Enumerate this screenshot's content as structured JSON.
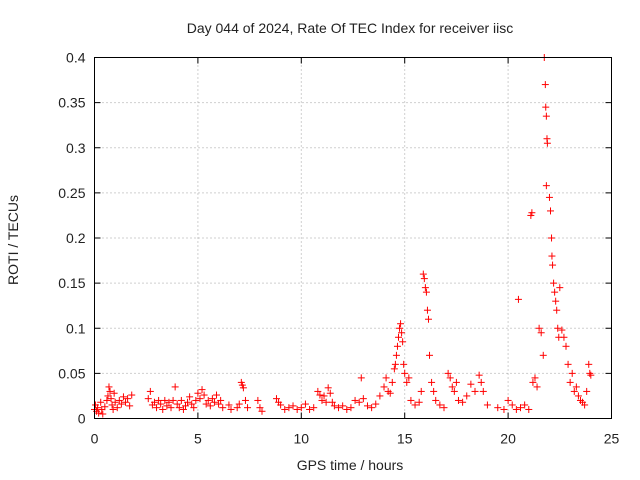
{
  "chart_data": {
    "type": "scatter",
    "title": "Day 044 of 2024, Rate Of TEC Index for receiver iisc",
    "xlabel": "GPS time / hours",
    "ylabel": "ROTI / TECUs",
    "xlim": [
      0,
      25
    ],
    "ylim": [
      0,
      0.4
    ],
    "xticks": [
      0,
      5,
      10,
      15,
      20,
      25
    ],
    "xtick_labels": [
      "0",
      "5",
      "10",
      "15",
      "20",
      "25"
    ],
    "yticks": [
      0,
      0.05,
      0.1,
      0.15,
      0.2,
      0.25,
      0.3,
      0.35,
      0.4
    ],
    "ytick_labels": [
      "0",
      "0.05",
      "0.1",
      "0.15",
      "0.2",
      "0.25",
      "0.3",
      "0.35",
      "0.4"
    ],
    "grid": true,
    "marker": "+",
    "series": [
      {
        "name": "ROTI",
        "color": "#ff0000",
        "points": [
          [
            0.0,
            0.01
          ],
          [
            0.05,
            0.015
          ],
          [
            0.1,
            0.008
          ],
          [
            0.15,
            0.012
          ],
          [
            0.2,
            0.006
          ],
          [
            0.3,
            0.018
          ],
          [
            0.35,
            0.01
          ],
          [
            0.4,
            0.005
          ],
          [
            0.5,
            0.013
          ],
          [
            0.6,
            0.02
          ],
          [
            0.65,
            0.025
          ],
          [
            0.7,
            0.035
          ],
          [
            0.75,
            0.03
          ],
          [
            0.8,
            0.022
          ],
          [
            0.85,
            0.015
          ],
          [
            0.9,
            0.01
          ],
          [
            0.95,
            0.028
          ],
          [
            1.0,
            0.018
          ],
          [
            1.1,
            0.012
          ],
          [
            1.2,
            0.02
          ],
          [
            1.3,
            0.016
          ],
          [
            1.4,
            0.024
          ],
          [
            1.5,
            0.018
          ],
          [
            1.6,
            0.022
          ],
          [
            1.7,
            0.014
          ],
          [
            1.8,
            0.026
          ],
          [
            2.6,
            0.022
          ],
          [
            2.7,
            0.03
          ],
          [
            2.8,
            0.015
          ],
          [
            2.9,
            0.018
          ],
          [
            3.0,
            0.012
          ],
          [
            3.1,
            0.02
          ],
          [
            3.2,
            0.016
          ],
          [
            3.3,
            0.01
          ],
          [
            3.4,
            0.02
          ],
          [
            3.5,
            0.014
          ],
          [
            3.6,
            0.018
          ],
          [
            3.7,
            0.012
          ],
          [
            3.8,
            0.02
          ],
          [
            3.9,
            0.035
          ],
          [
            4.0,
            0.016
          ],
          [
            4.1,
            0.012
          ],
          [
            4.2,
            0.02
          ],
          [
            4.3,
            0.01
          ],
          [
            4.4,
            0.014
          ],
          [
            4.5,
            0.018
          ],
          [
            4.6,
            0.024
          ],
          [
            4.7,
            0.016
          ],
          [
            4.8,
            0.012
          ],
          [
            4.9,
            0.02
          ],
          [
            5.0,
            0.028
          ],
          [
            5.1,
            0.022
          ],
          [
            5.2,
            0.032
          ],
          [
            5.3,
            0.026
          ],
          [
            5.4,
            0.016
          ],
          [
            5.5,
            0.02
          ],
          [
            5.6,
            0.014
          ],
          [
            5.7,
            0.022
          ],
          [
            5.8,
            0.018
          ],
          [
            5.9,
            0.026
          ],
          [
            6.0,
            0.016
          ],
          [
            6.1,
            0.02
          ],
          [
            6.2,
            0.012
          ],
          [
            6.5,
            0.015
          ],
          [
            6.6,
            0.01
          ],
          [
            6.9,
            0.012
          ],
          [
            7.0,
            0.016
          ],
          [
            7.1,
            0.04
          ],
          [
            7.15,
            0.037
          ],
          [
            7.2,
            0.034
          ],
          [
            7.3,
            0.02
          ],
          [
            7.4,
            0.012
          ],
          [
            7.9,
            0.02
          ],
          [
            8.0,
            0.012
          ],
          [
            8.1,
            0.008
          ],
          [
            8.8,
            0.022
          ],
          [
            8.9,
            0.018
          ],
          [
            9.0,
            0.015
          ],
          [
            9.2,
            0.01
          ],
          [
            9.4,
            0.012
          ],
          [
            9.6,
            0.014
          ],
          [
            9.8,
            0.01
          ],
          [
            10.0,
            0.012
          ],
          [
            10.2,
            0.016
          ],
          [
            10.4,
            0.01
          ],
          [
            10.6,
            0.012
          ],
          [
            10.8,
            0.03
          ],
          [
            10.9,
            0.026
          ],
          [
            11.0,
            0.02
          ],
          [
            11.1,
            0.025
          ],
          [
            11.2,
            0.018
          ],
          [
            11.3,
            0.034
          ],
          [
            11.4,
            0.028
          ],
          [
            11.5,
            0.018
          ],
          [
            11.6,
            0.014
          ],
          [
            11.8,
            0.012
          ],
          [
            12.0,
            0.014
          ],
          [
            12.2,
            0.01
          ],
          [
            12.4,
            0.012
          ],
          [
            12.6,
            0.02
          ],
          [
            12.8,
            0.018
          ],
          [
            12.9,
            0.045
          ],
          [
            13.0,
            0.022
          ],
          [
            13.2,
            0.014
          ],
          [
            13.4,
            0.012
          ],
          [
            13.6,
            0.016
          ],
          [
            13.8,
            0.025
          ],
          [
            14.0,
            0.035
          ],
          [
            14.1,
            0.045
          ],
          [
            14.2,
            0.03
          ],
          [
            14.3,
            0.028
          ],
          [
            14.4,
            0.04
          ],
          [
            14.5,
            0.055
          ],
          [
            14.55,
            0.06
          ],
          [
            14.6,
            0.07
          ],
          [
            14.65,
            0.08
          ],
          [
            14.7,
            0.09
          ],
          [
            14.75,
            0.1
          ],
          [
            14.8,
            0.105
          ],
          [
            14.85,
            0.095
          ],
          [
            14.9,
            0.085
          ],
          [
            14.95,
            0.06
          ],
          [
            15.0,
            0.05
          ],
          [
            15.1,
            0.04
          ],
          [
            15.2,
            0.045
          ],
          [
            15.3,
            0.02
          ],
          [
            15.5,
            0.015
          ],
          [
            15.7,
            0.018
          ],
          [
            15.8,
            0.03
          ],
          [
            15.9,
            0.16
          ],
          [
            15.95,
            0.155
          ],
          [
            16.0,
            0.145
          ],
          [
            16.05,
            0.14
          ],
          [
            16.1,
            0.12
          ],
          [
            16.15,
            0.11
          ],
          [
            16.2,
            0.07
          ],
          [
            16.3,
            0.04
          ],
          [
            16.4,
            0.03
          ],
          [
            16.5,
            0.02
          ],
          [
            16.7,
            0.015
          ],
          [
            16.9,
            0.012
          ],
          [
            17.1,
            0.05
          ],
          [
            17.2,
            0.045
          ],
          [
            17.3,
            0.035
          ],
          [
            17.4,
            0.03
          ],
          [
            17.5,
            0.04
          ],
          [
            17.6,
            0.02
          ],
          [
            17.8,
            0.018
          ],
          [
            18.0,
            0.025
          ],
          [
            18.2,
            0.038
          ],
          [
            18.4,
            0.03
          ],
          [
            18.6,
            0.048
          ],
          [
            18.7,
            0.04
          ],
          [
            18.8,
            0.03
          ],
          [
            19.0,
            0.015
          ],
          [
            19.5,
            0.012
          ],
          [
            19.8,
            0.01
          ],
          [
            20.0,
            0.02
          ],
          [
            20.2,
            0.015
          ],
          [
            20.4,
            0.01
          ],
          [
            20.5,
            0.132
          ],
          [
            20.6,
            0.012
          ],
          [
            20.8,
            0.015
          ],
          [
            21.0,
            0.01
          ],
          [
            21.1,
            0.225
          ],
          [
            21.15,
            0.228
          ],
          [
            21.2,
            0.04
          ],
          [
            21.3,
            0.045
          ],
          [
            21.4,
            0.035
          ],
          [
            21.5,
            0.1
          ],
          [
            21.6,
            0.095
          ],
          [
            21.7,
            0.07
          ],
          [
            21.75,
            0.4
          ],
          [
            21.8,
            0.37
          ],
          [
            21.82,
            0.345
          ],
          [
            21.85,
            0.335
          ],
          [
            21.88,
            0.31
          ],
          [
            21.9,
            0.305
          ],
          [
            21.85,
            0.258
          ],
          [
            22.0,
            0.245
          ],
          [
            22.05,
            0.23
          ],
          [
            22.1,
            0.2
          ],
          [
            22.12,
            0.18
          ],
          [
            22.15,
            0.17
          ],
          [
            22.2,
            0.15
          ],
          [
            22.25,
            0.14
          ],
          [
            22.3,
            0.13
          ],
          [
            22.35,
            0.12
          ],
          [
            22.4,
            0.1
          ],
          [
            22.45,
            0.09
          ],
          [
            22.5,
            0.145
          ],
          [
            22.6,
            0.098
          ],
          [
            22.7,
            0.09
          ],
          [
            22.8,
            0.08
          ],
          [
            22.9,
            0.06
          ],
          [
            23.0,
            0.04
          ],
          [
            23.1,
            0.05
          ],
          [
            23.2,
            0.03
          ],
          [
            23.3,
            0.035
          ],
          [
            23.4,
            0.025
          ],
          [
            23.5,
            0.02
          ],
          [
            23.6,
            0.018
          ],
          [
            23.7,
            0.015
          ],
          [
            23.8,
            0.03
          ],
          [
            23.9,
            0.06
          ],
          [
            24.0,
            0.048
          ],
          [
            23.95,
            0.05
          ]
        ]
      }
    ]
  }
}
